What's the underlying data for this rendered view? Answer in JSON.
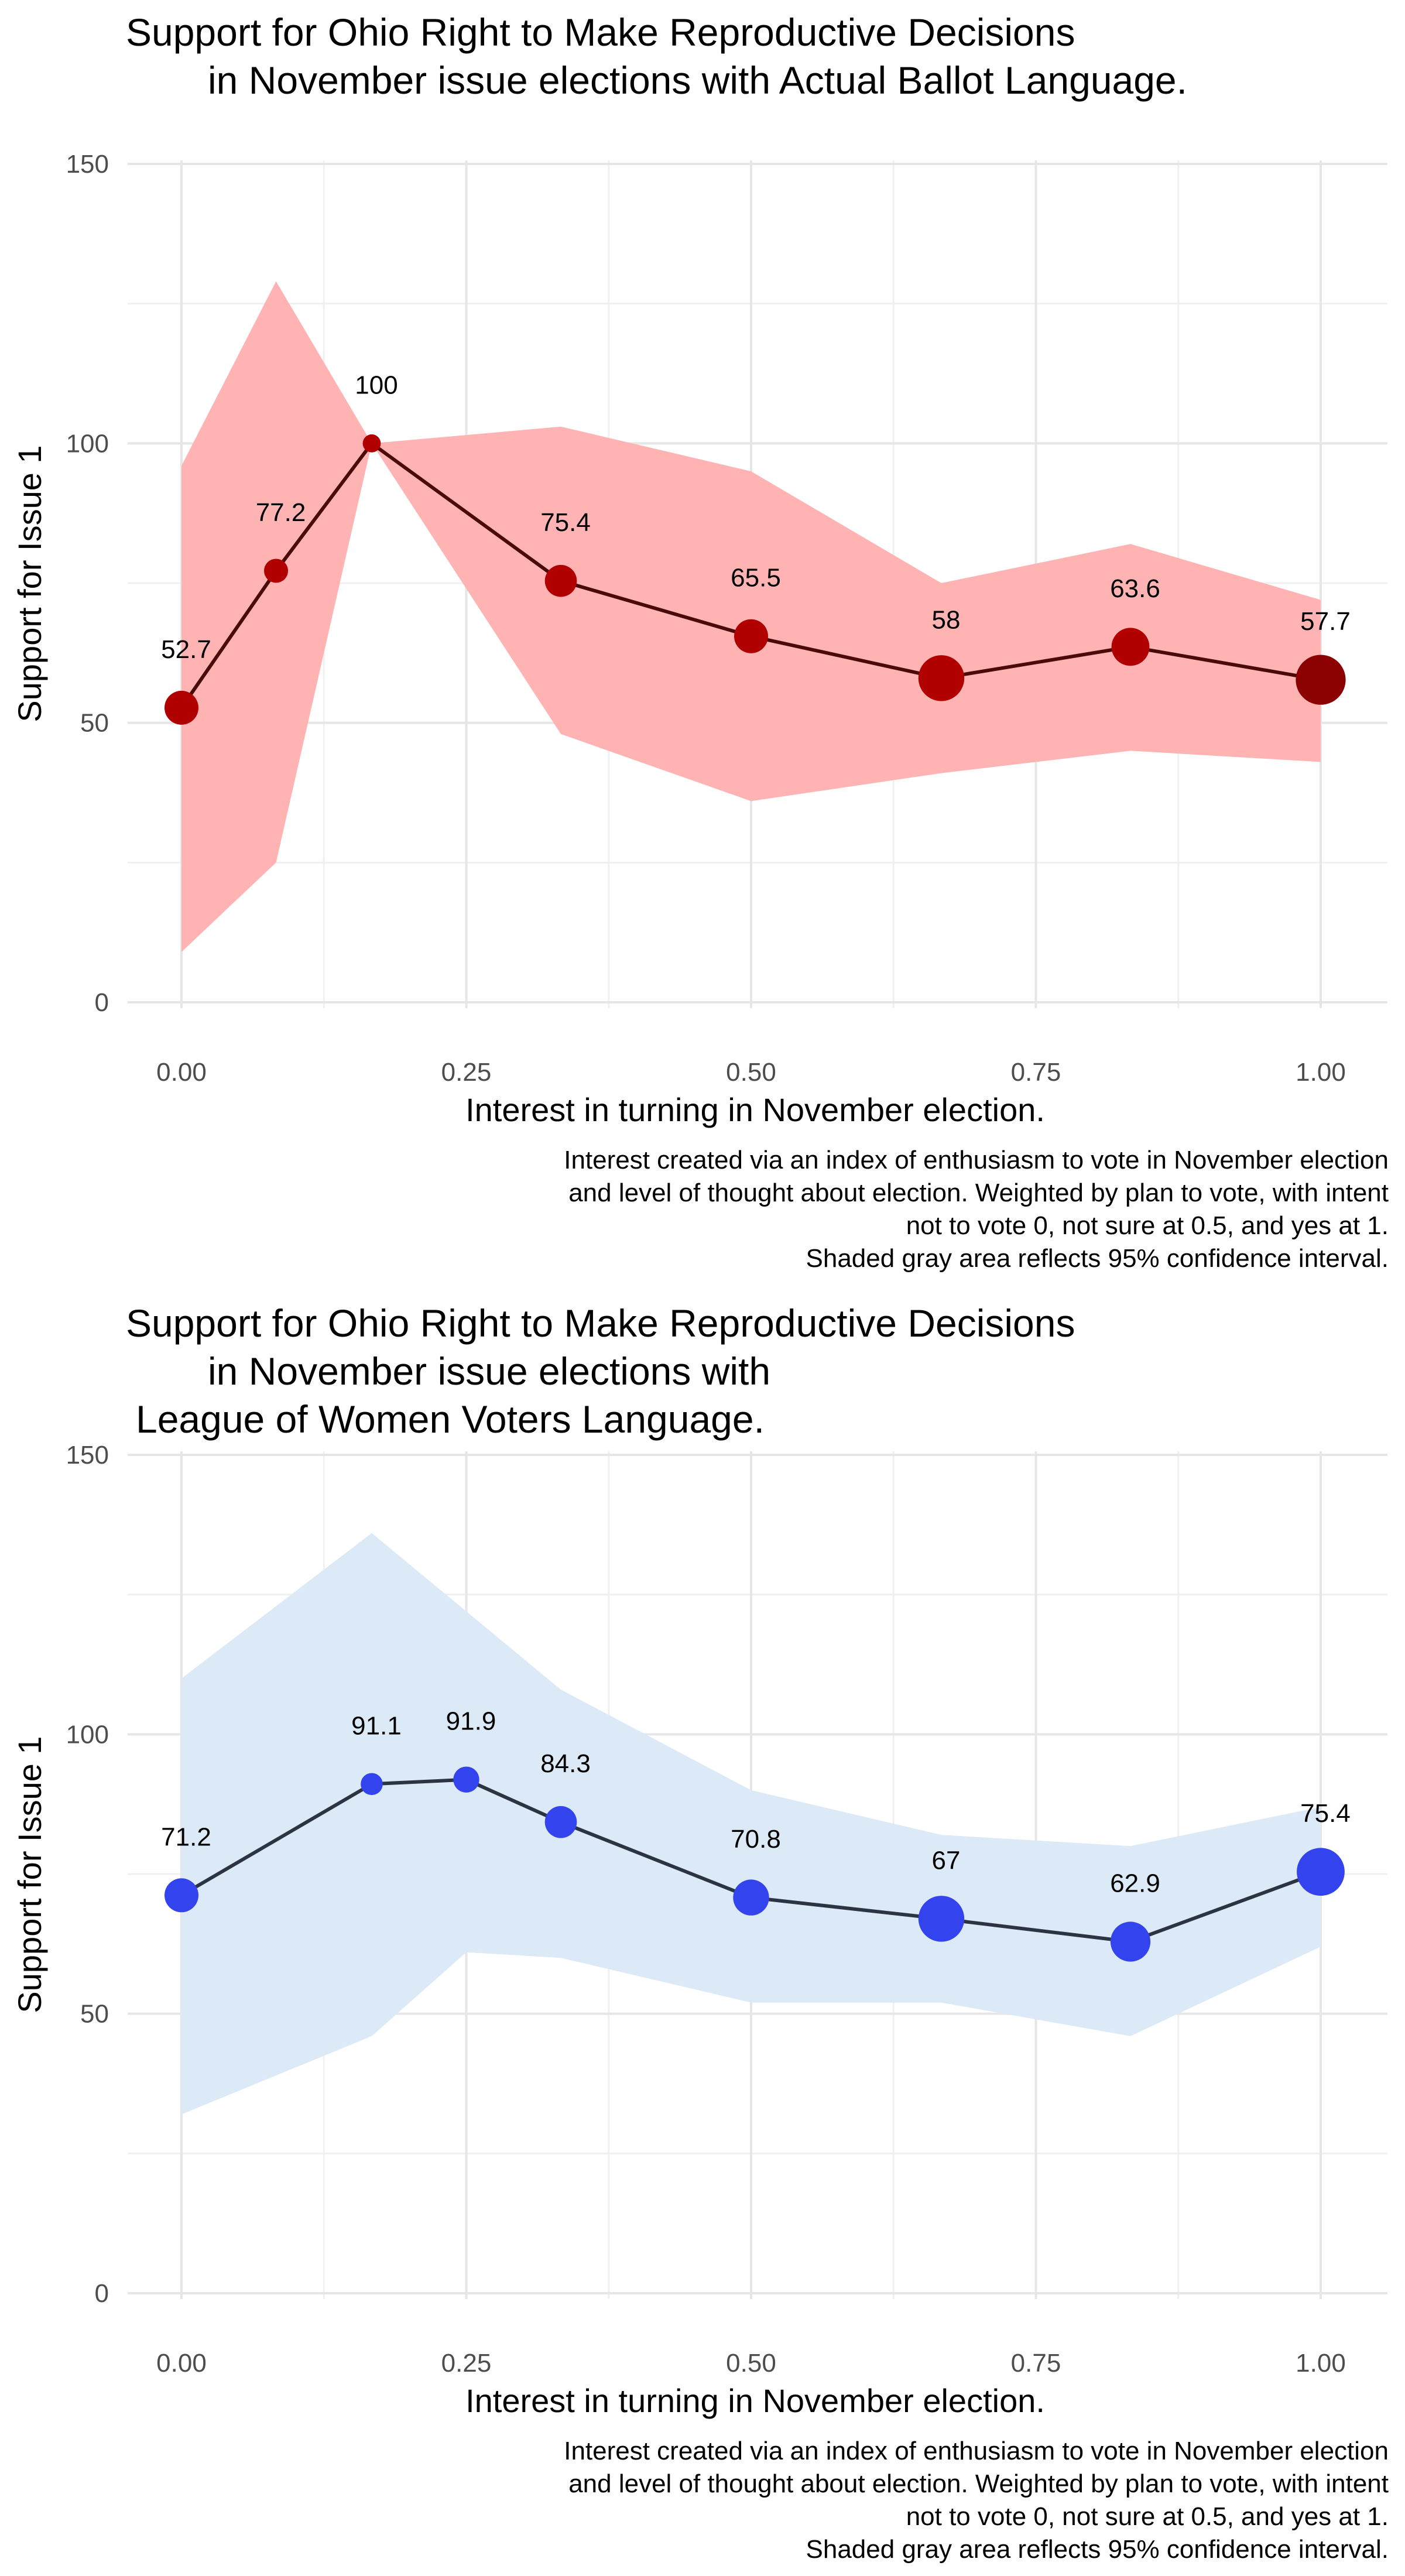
{
  "chart_data": [
    {
      "type": "line",
      "title": [
        "Support for Ohio Right to Make Reproductive Decisions",
        "in November issue elections with Actual Ballot Language."
      ],
      "xlabel": "Interest in turning in November election.",
      "ylabel": "Support for Issue 1",
      "caption": [
        "Interest created via an index of enthusiasm to vote in November election",
        "and level of thought about election. Weighted by plan to vote, with intent",
        "not to vote 0, not sure at 0.5, and yes at 1.",
        "Shaded gray area reflects 95% confidence interval."
      ],
      "xlim": [
        0,
        1
      ],
      "ylim": [
        0,
        150
      ],
      "x_ticks": [
        "0.00",
        "0.25",
        "0.50",
        "0.75",
        "1.00"
      ],
      "y_ticks": [
        "0",
        "50",
        "100",
        "150"
      ],
      "grid": true,
      "colors": {
        "ribbon": "#ffb3b3",
        "line": "#4a0a0a",
        "point": "#b00000",
        "point_dark": "#8b0000"
      },
      "series": [
        {
          "x": [
            0,
            0.083,
            0.167,
            0.333,
            0.5,
            0.667,
            0.833,
            1.0
          ],
          "y": [
            52.7,
            77.2,
            100,
            75.4,
            65.5,
            58,
            63.6,
            57.7
          ],
          "labels": [
            "52.7",
            "77.2",
            "100",
            "75.4",
            "65.5",
            "58",
            "63.6",
            "57.7"
          ],
          "ci_lower": [
            9,
            25,
            100,
            48,
            36,
            41,
            45,
            43
          ],
          "ci_upper": [
            96,
            129,
            100,
            103,
            95,
            75,
            82,
            72
          ],
          "point_weight": [
            0.5,
            0.25,
            0.1,
            0.45,
            0.5,
            0.8,
            0.6,
            0.9
          ]
        }
      ]
    },
    {
      "type": "line",
      "title": [
        "Support for Ohio Right to Make Reproductive Decisions",
        "in November issue elections with",
        "League of Women Voters Language."
      ],
      "xlabel": "Interest in turning in November election.",
      "ylabel": "Support for Issue 1",
      "caption": [
        "Interest created via an index of enthusiasm to vote in November election",
        "and level of thought about election. Weighted by plan to vote, with intent",
        "not to vote 0, not sure at 0.5, and yes at 1.",
        "Shaded gray area reflects 95% confidence interval."
      ],
      "xlim": [
        0,
        1
      ],
      "ylim": [
        0,
        150
      ],
      "x_ticks": [
        "0.00",
        "0.25",
        "0.50",
        "0.75",
        "1.00"
      ],
      "y_ticks": [
        "0",
        "50",
        "100",
        "150"
      ],
      "grid": true,
      "colors": {
        "ribbon": "#dbeaf6",
        "line": "#2b3440",
        "point": "#3344ee",
        "point_dark": "#2233ee"
      },
      "series": [
        {
          "x": [
            0,
            0.167,
            0.25,
            0.333,
            0.5,
            0.667,
            0.833,
            1.0
          ],
          "y": [
            71.2,
            91.1,
            91.9,
            84.3,
            70.8,
            67,
            62.9,
            75.4
          ],
          "labels": [
            "71.2",
            "91.1",
            "91.9",
            "84.3",
            "70.8",
            "67",
            "62.9",
            "75.4"
          ],
          "ci_lower": [
            32,
            46,
            61,
            60,
            52,
            52,
            46,
            62
          ],
          "ci_upper": [
            110,
            136,
            122,
            108,
            90,
            82,
            80,
            87
          ],
          "point_weight": [
            0.5,
            0.2,
            0.3,
            0.45,
            0.55,
            0.8,
            0.65,
            0.85
          ]
        }
      ]
    }
  ]
}
